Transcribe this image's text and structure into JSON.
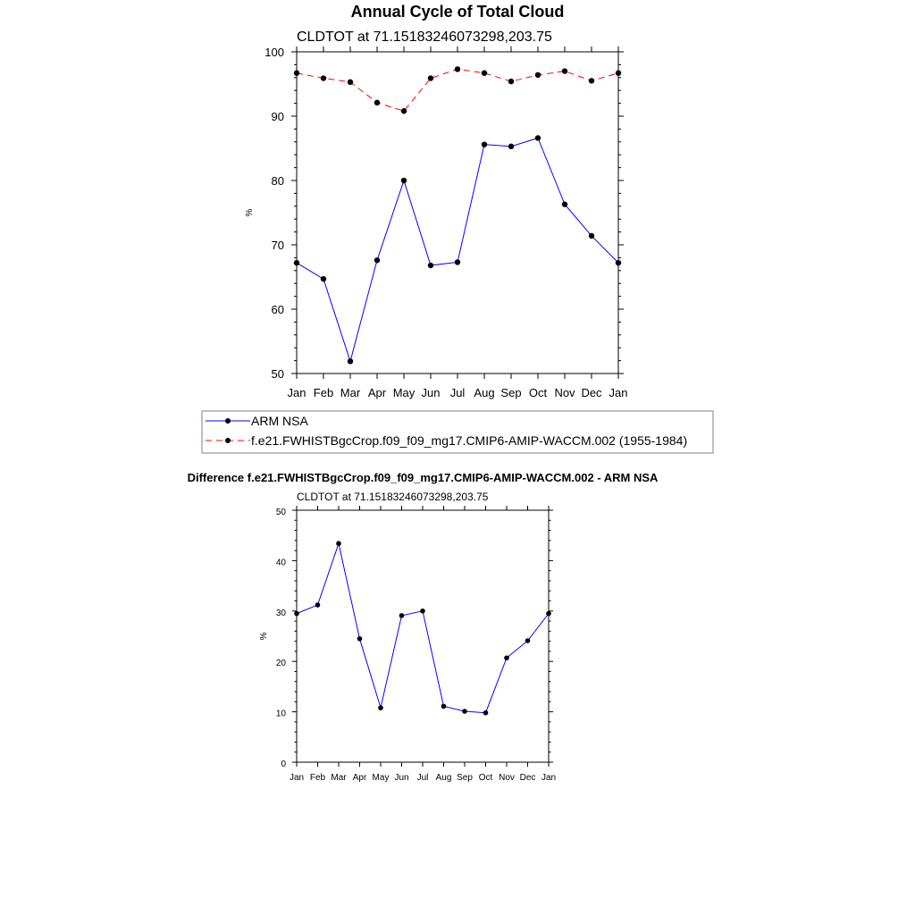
{
  "page_title": "Annual Cycle of Total Cloud",
  "chart_data": [
    {
      "type": "line",
      "title": "Annual Cycle of Total Cloud",
      "subtitle": "CLDTOT at 71.15183246073298,203.75",
      "xlabel": "",
      "ylabel": "%",
      "ylim": [
        50,
        100
      ],
      "yticks": [
        50,
        60,
        70,
        80,
        90,
        100
      ],
      "categories": [
        "Jan",
        "Feb",
        "Mar",
        "Apr",
        "May",
        "Jun",
        "Jul",
        "Aug",
        "Sep",
        "Oct",
        "Nov",
        "Dec",
        "Jan"
      ],
      "series": [
        {
          "name": "ARM NSA",
          "color": "#0000ff",
          "dash": "solid",
          "marker": "circle",
          "values": [
            67.2,
            64.7,
            51.9,
            67.6,
            80.0,
            66.8,
            67.3,
            85.6,
            85.3,
            86.6,
            76.3,
            71.4,
            67.2
          ]
        },
        {
          "name": "f.e21.FWHISTBgcCrop.f09_f09_mg17.CMIP6-AMIP-WACCM.002 (1955-1984)",
          "color": "#ff0000",
          "dash": "dashed",
          "marker": "circle",
          "values": [
            96.7,
            95.9,
            95.3,
            92.1,
            90.8,
            95.9,
            97.3,
            96.7,
            95.4,
            96.4,
            97.0,
            95.5,
            96.7
          ]
        }
      ],
      "legend": {
        "position": "bottom",
        "entries": [
          "ARM NSA",
          "f.e21.FWHISTBgcCrop.f09_f09_mg17.CMIP6-AMIP-WACCM.002 (1955-1984)"
        ]
      },
      "grid": false
    },
    {
      "type": "line",
      "title": "Difference f.e21.FWHISTBgcCrop.f09_f09_mg17.CMIP6-AMIP-WACCM.002 - ARM NSA",
      "subtitle": "CLDTOT at 71.15183246073298,203.75",
      "xlabel": "",
      "ylabel": "%",
      "ylim": [
        0,
        50
      ],
      "yticks": [
        0,
        10,
        20,
        30,
        40,
        50
      ],
      "categories": [
        "Jan",
        "Feb",
        "Mar",
        "Apr",
        "May",
        "Jun",
        "Jul",
        "Aug",
        "Sep",
        "Oct",
        "Nov",
        "Dec",
        "Jan"
      ],
      "series": [
        {
          "name": "Difference",
          "color": "#0000ff",
          "dash": "solid",
          "marker": "circle",
          "values": [
            29.5,
            31.2,
            43.4,
            24.5,
            10.8,
            29.1,
            30.0,
            11.1,
            10.1,
            9.8,
            20.7,
            24.1,
            29.5
          ]
        }
      ],
      "grid": false
    }
  ]
}
